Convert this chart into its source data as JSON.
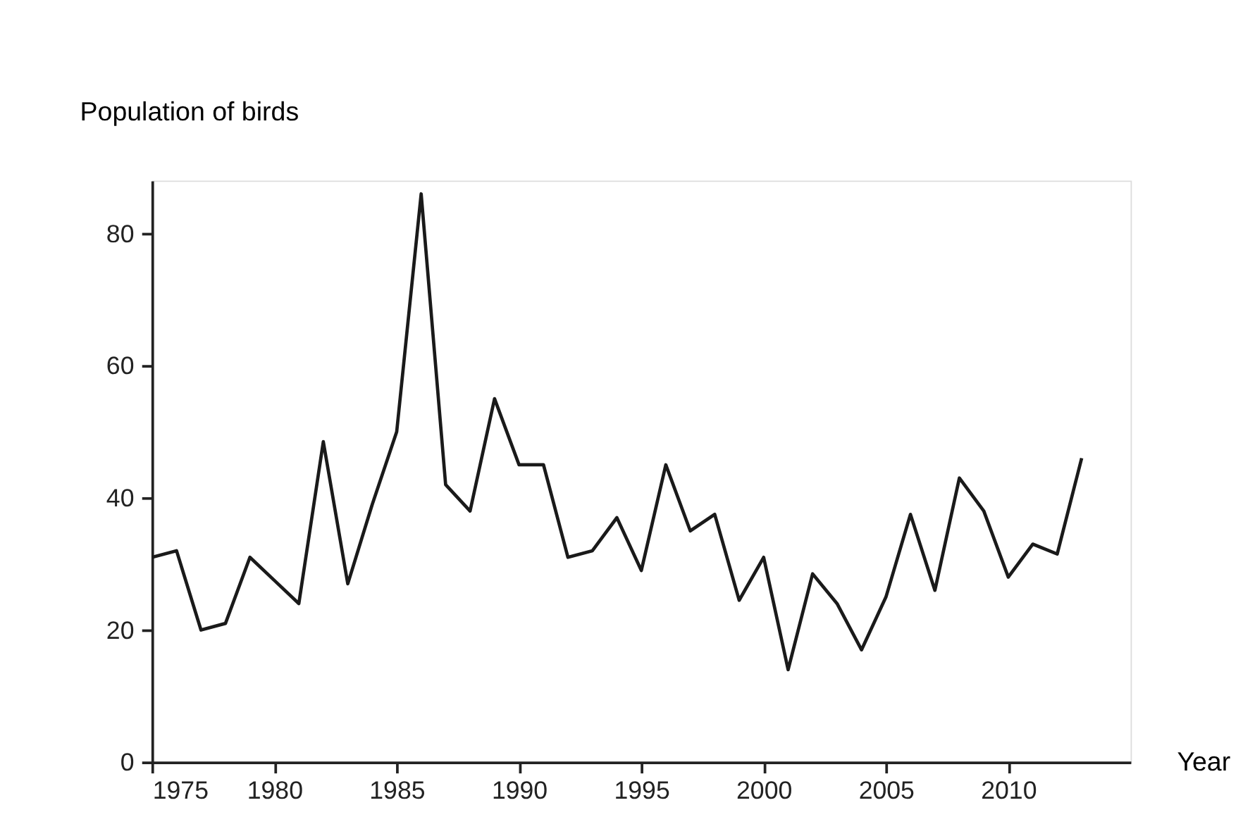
{
  "chart_data": {
    "type": "line",
    "xlabel": "Year",
    "ylabel": "Population of birds",
    "x": [
      1975,
      1976,
      1977,
      1978,
      1979,
      1980,
      1981,
      1982,
      1983,
      1984,
      1985,
      1986,
      1987,
      1988,
      1989,
      1990,
      1991,
      1992,
      1993,
      1994,
      1995,
      1996,
      1997,
      1998,
      1999,
      2000,
      2001,
      2002,
      2003,
      2004,
      2005,
      2006,
      2007,
      2008,
      2009,
      2010,
      2011,
      2012,
      2013
    ],
    "series": [
      {
        "color": "#1a1a1a",
        "values": [
          31,
          32,
          20,
          21,
          31,
          27.5,
          24,
          48.5,
          27,
          39,
          50,
          86,
          42,
          38,
          55,
          45,
          45,
          31,
          32,
          37,
          29,
          45,
          35,
          37.5,
          24.5,
          31,
          14,
          28.5,
          24,
          17,
          25,
          37.5,
          26,
          43,
          38,
          28,
          33,
          31.5,
          46
        ]
      }
    ],
    "xlim": [
      1975,
      2015
    ],
    "xticks": [
      1975,
      1980,
      1985,
      1990,
      1995,
      2000,
      2005,
      2010
    ],
    "ylim": [
      0,
      88
    ],
    "yticks": [
      0,
      20,
      40,
      60,
      80
    ],
    "grid": false,
    "marker": "none",
    "line_style": "solid",
    "legend": false
  }
}
